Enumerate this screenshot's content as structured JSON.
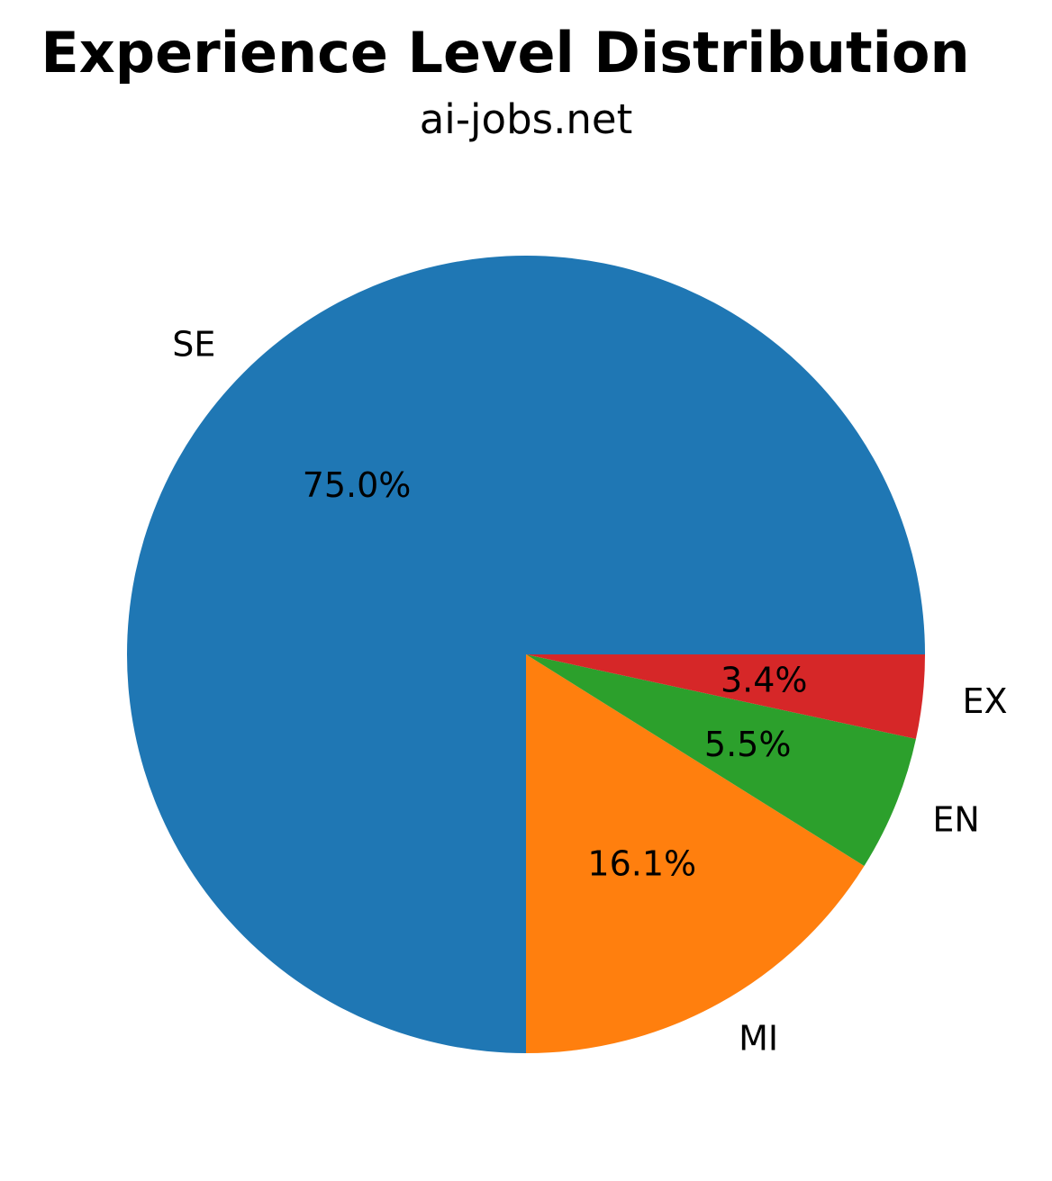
{
  "chart_data": {
    "type": "pie",
    "title": "Experience Level Distribution",
    "subtitle": "ai-jobs.net",
    "categories": [
      "SE",
      "MI",
      "EN",
      "EX"
    ],
    "values": [
      75.0,
      16.1,
      5.5,
      3.4
    ],
    "value_labels": [
      "75.0%",
      "16.1%",
      "5.5%",
      "3.4%"
    ],
    "colors": [
      "#1f77b4",
      "#ff7f0e",
      "#2ca02c",
      "#d62728"
    ],
    "start_angle_deg": 0,
    "direction": "counterclockwise",
    "legend": "none"
  }
}
